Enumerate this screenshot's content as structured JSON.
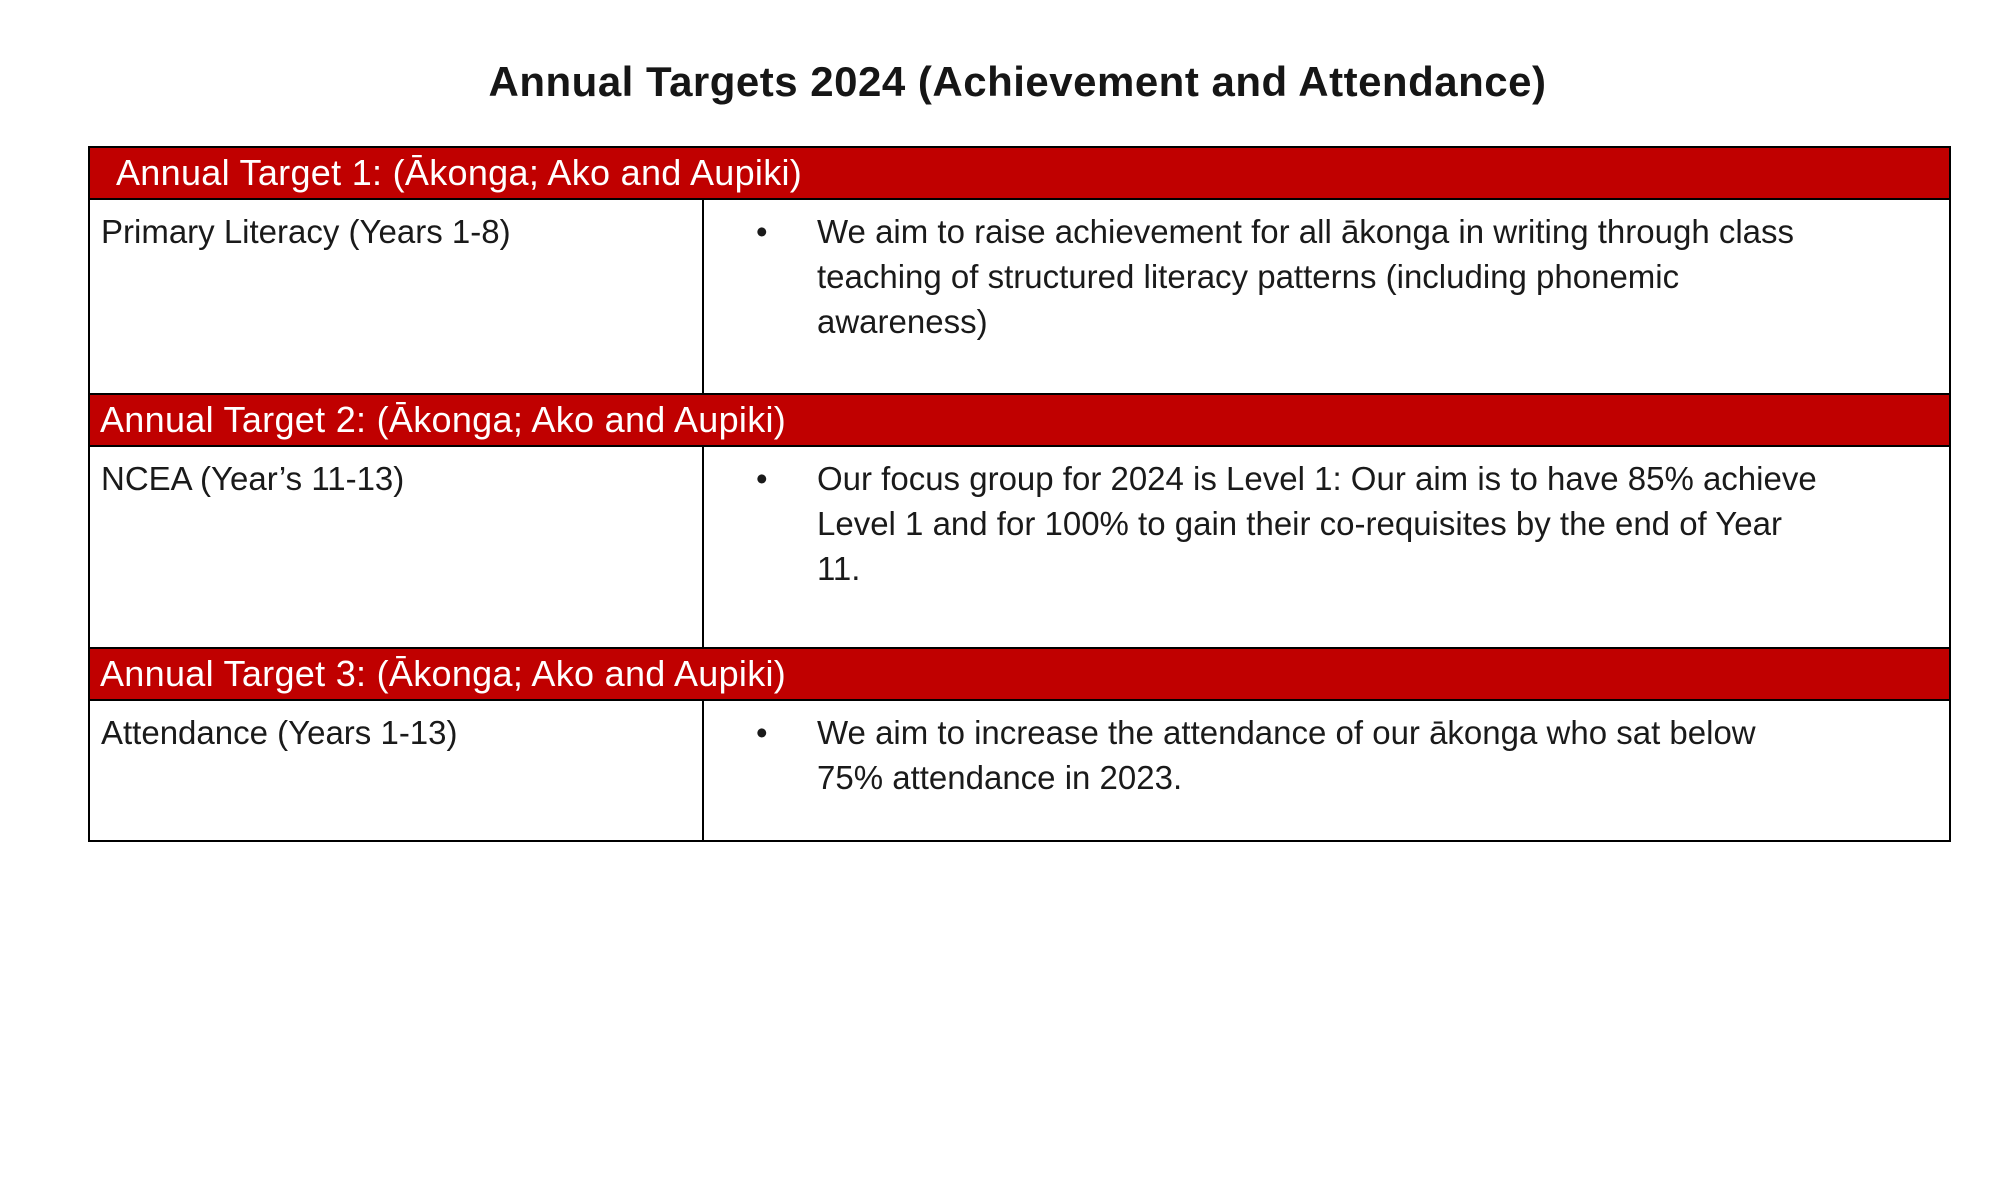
{
  "page": {
    "title": "Annual Targets 2024 (Achievement and Attendance)"
  },
  "table": {
    "sections": [
      {
        "header": "Annual Target 1: (Ākonga; Ako and Aupiki)",
        "label": "Primary Literacy (Years 1-8)",
        "bullets": [
          "We aim to raise achievement for all ākonga in writing through class teaching of structured literacy patterns (including phonemic awareness)"
        ]
      },
      {
        "header": "Annual Target 2: (Ākonga; Ako and Aupiki)",
        "label": "NCEA (Year’s 11-13)",
        "bullets": [
          "Our focus group for 2024 is Level 1: Our aim is to have 85% achieve Level 1 and for 100% to gain their co-requisites by the end of Year 11."
        ]
      },
      {
        "header": "Annual Target 3: (Ākonga; Ako and Aupiki)",
        "label": "Attendance (Years 1-13)",
        "bullets": [
          "We aim to increase the attendance of our ākonga who sat below 75% attendance in 2023."
        ]
      }
    ]
  },
  "colors": {
    "header_background": "#C00000",
    "header_text": "#FFFFFF",
    "body_text": "#1A1A1A",
    "table_border": "#000000",
    "page_background": "#FFFFFF"
  }
}
